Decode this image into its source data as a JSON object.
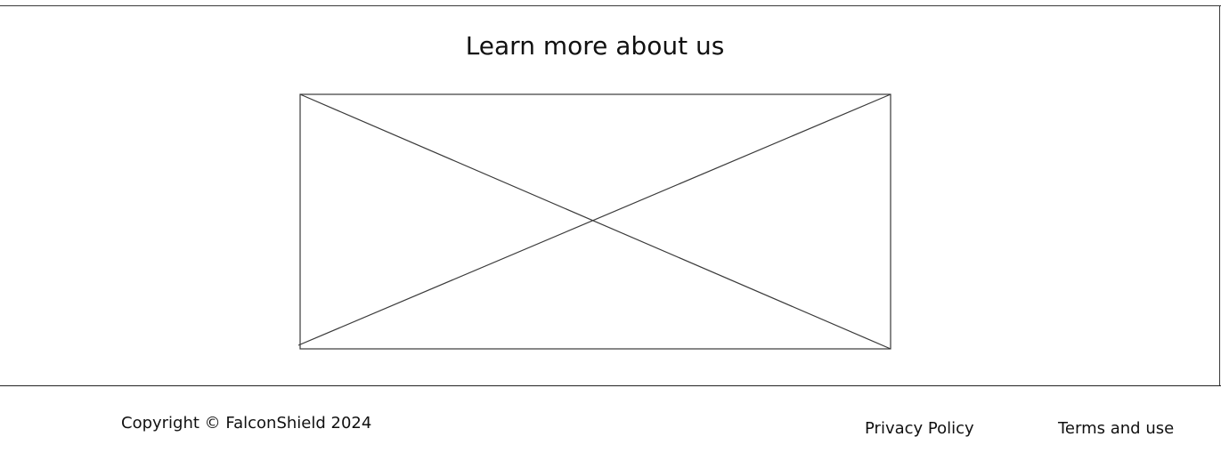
{
  "about": {
    "title": "Learn more about us",
    "image_placeholder": "image-placeholder"
  },
  "footer": {
    "copyright": "Copyright © FalconShield 2024",
    "links": [
      {
        "label": "Privacy Policy"
      },
      {
        "label": "Terms and use"
      }
    ]
  },
  "colors": {
    "background": "#ffffff",
    "text": "#111111",
    "rule": "#3a3a3a"
  }
}
